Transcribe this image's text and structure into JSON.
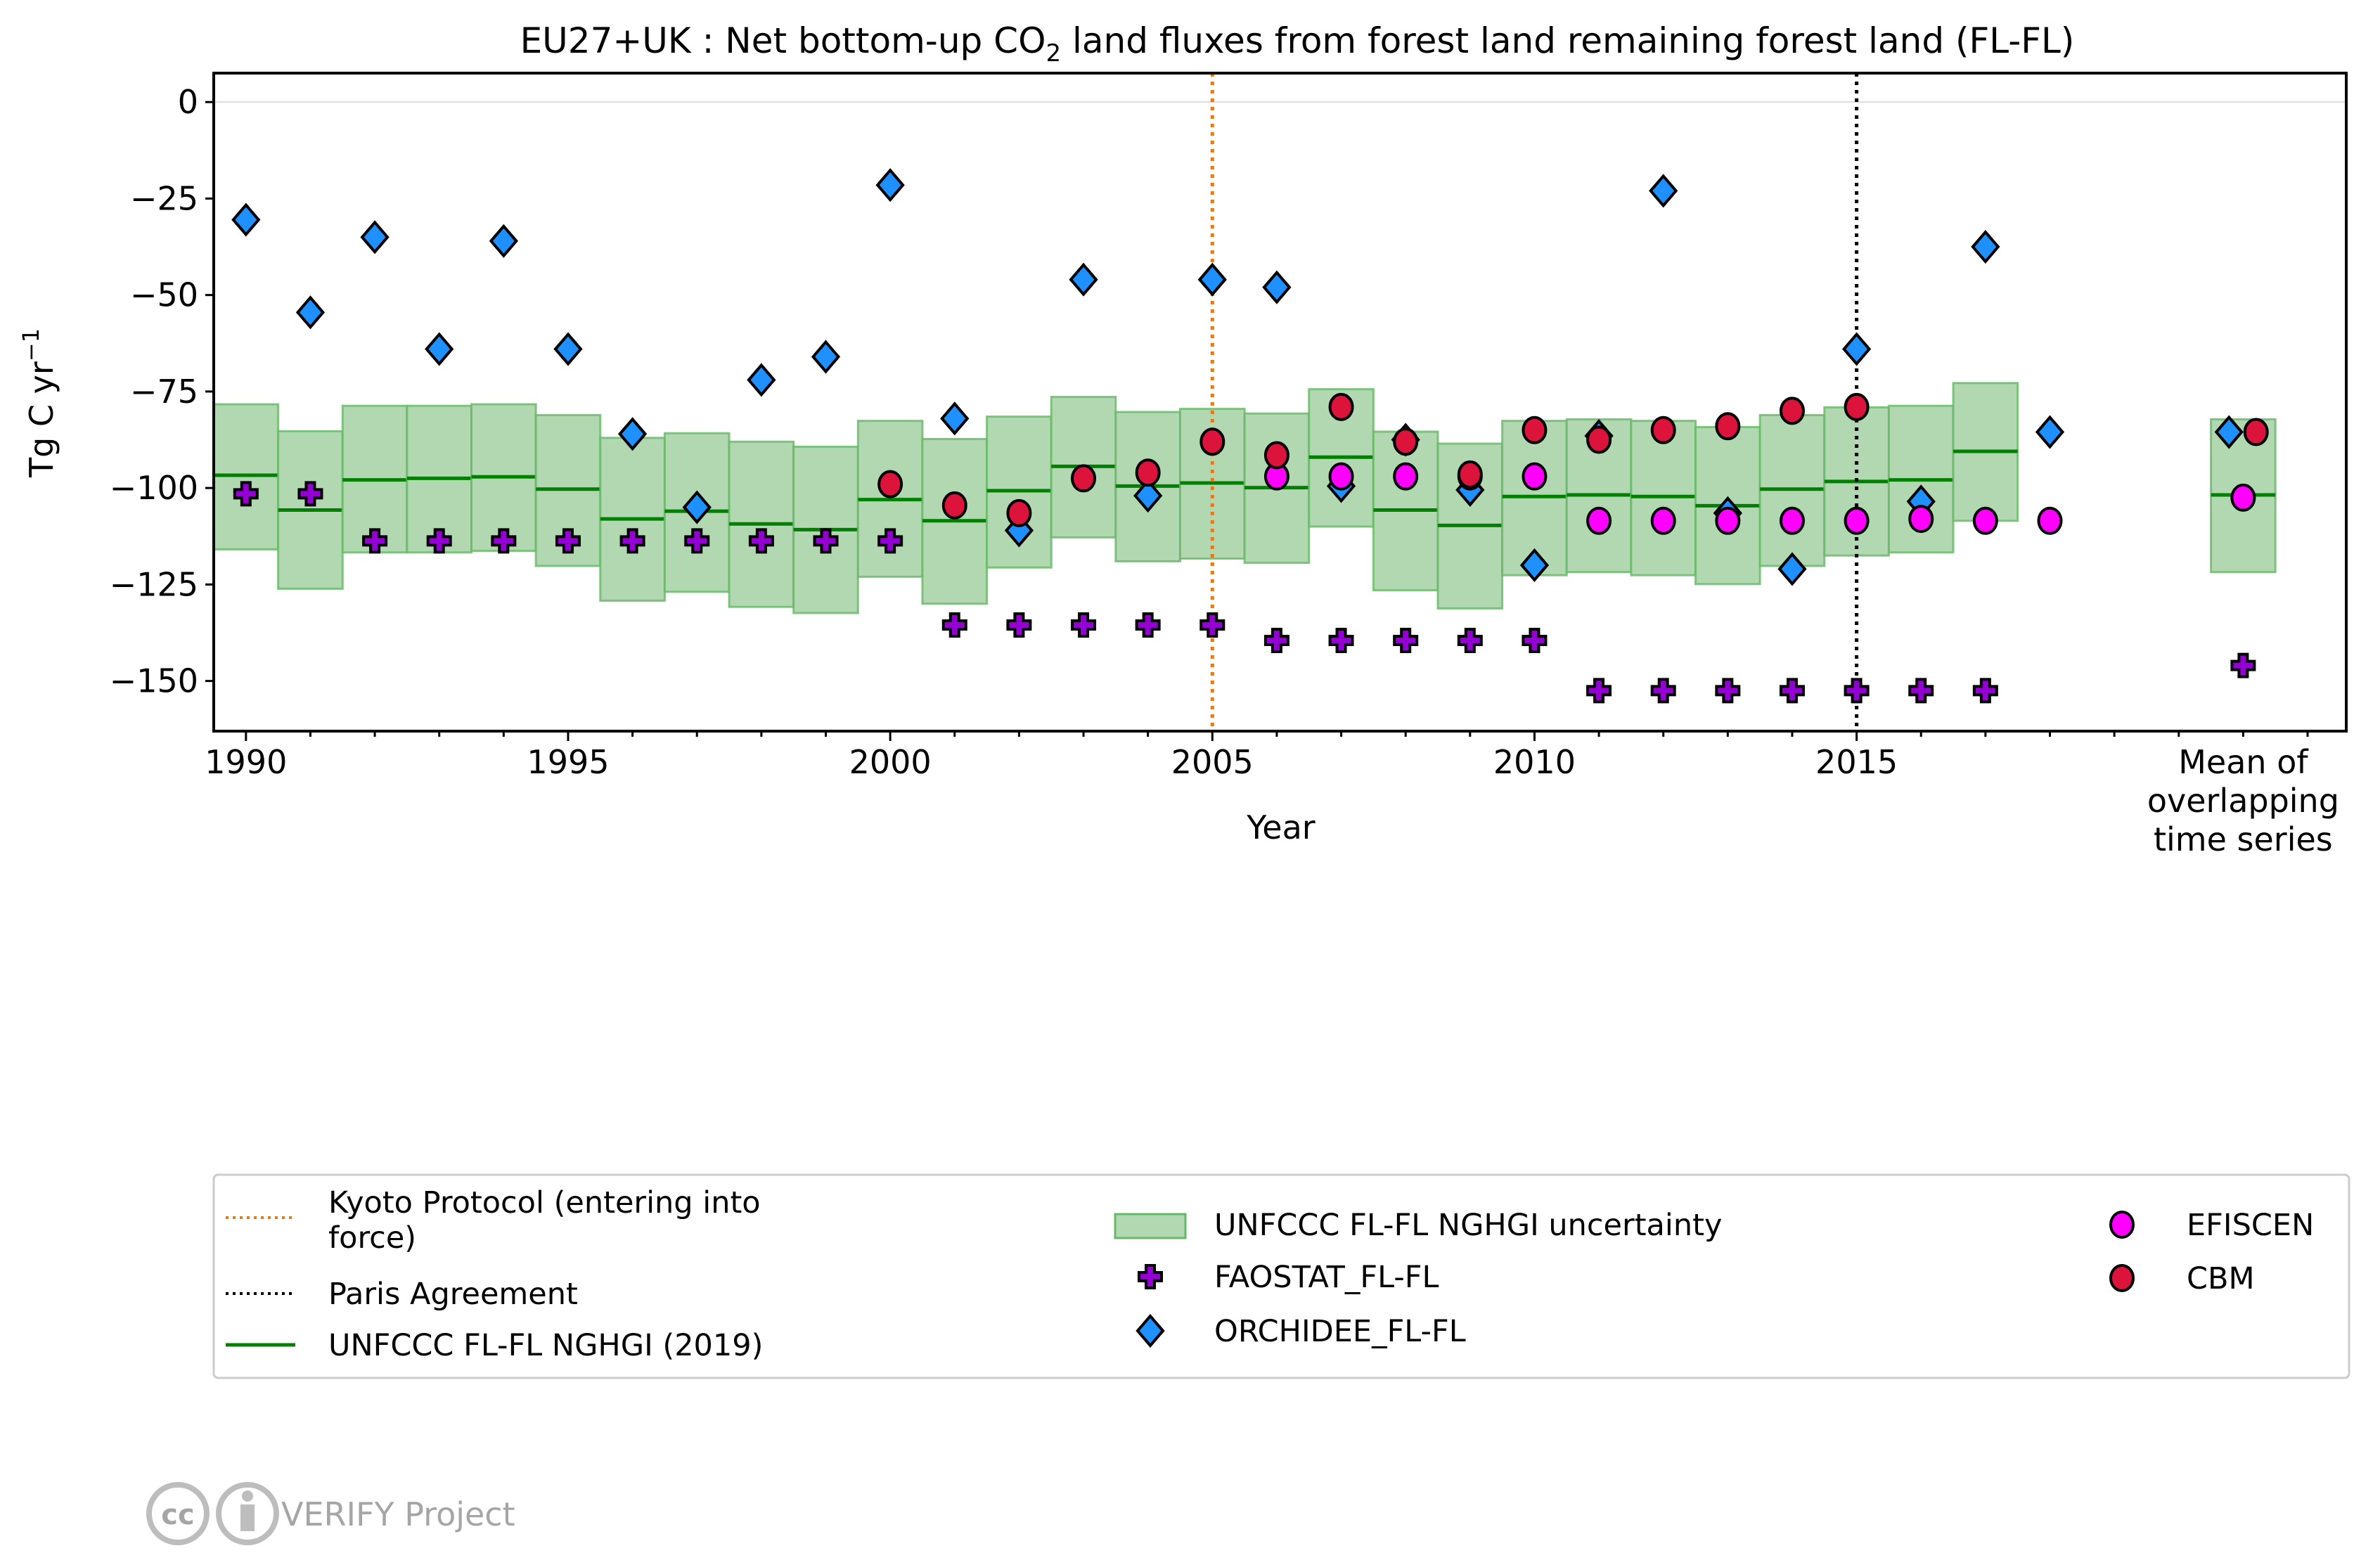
{
  "chart_data": {
    "type": "scatter",
    "title_main": "EU27+UK : Net bottom-up CO",
    "title_sub": "2",
    "title_rest": " land fluxes from forest land remaining forest land (FL-FL)",
    "xlabel": "Year",
    "ylabel_main": "Tg C yr",
    "ylabel_sup": "−1",
    "xlim": [
      1989.5,
      2022.6
    ],
    "ylim": [
      -163,
      7.5
    ],
    "x_ticks": [
      1990,
      1995,
      2000,
      2005,
      2010,
      2015
    ],
    "x_tick_labels": [
      "1990",
      "1995",
      "2000",
      "2005",
      "2010",
      "2015"
    ],
    "mean_label": [
      "Mean of",
      "overlapping",
      "time series"
    ],
    "mean_x": 2021,
    "y_ticks": [
      0,
      -25,
      -50,
      -75,
      -100,
      -125,
      -150
    ],
    "y_tick_labels": [
      "0",
      "−25",
      "−50",
      "−75",
      "−100",
      "−125",
      "−150"
    ],
    "zero_gridline": true,
    "vlines": [
      {
        "name": "Kyoto Protocol (entering into force)",
        "x": 2005,
        "color": "#e07b20"
      },
      {
        "name": "Paris Agreement",
        "x": 2015,
        "color": "#000000"
      }
    ],
    "nghgi": {
      "name": "UNFCCC FL-FL NGHGI (2019)",
      "uncertainty_name": "UNFCCC FL-FL NGHGI uncertainty",
      "color": "#008000",
      "fill": "#b2d8b2",
      "years": [
        1990,
        1991,
        1992,
        1993,
        1994,
        1995,
        1996,
        1997,
        1998,
        1999,
        2000,
        2001,
        2002,
        2003,
        2004,
        2005,
        2006,
        2007,
        2008,
        2009,
        2010,
        2011,
        2012,
        2013,
        2014,
        2015,
        2016,
        2017
      ],
      "values": [
        -96.7,
        -105.7,
        -97.9,
        -97.5,
        -97.1,
        -100.3,
        -108,
        -106,
        -109.3,
        -110.8,
        -103,
        -108.5,
        -100.7,
        -94.4,
        -99.5,
        -98.7,
        -99.9,
        -92,
        -105.7,
        -109.7,
        -102.2,
        -101.8,
        -102.2,
        -104.6,
        -100.3,
        -98.3,
        -97.9,
        -90.5
      ],
      "upper": [
        -78.3,
        -85.3,
        -78.7,
        -78.7,
        -78.3,
        -81.1,
        -87,
        -85.8,
        -88,
        -89.3,
        -82.6,
        -87.3,
        -81.5,
        -76.4,
        -80.3,
        -79.5,
        -80.7,
        -74.4,
        -85.4,
        -88.5,
        -82.6,
        -82.2,
        -82.6,
        -84.2,
        -81.1,
        -79.1,
        -78.7,
        -72.8
      ],
      "lower": [
        -115.9,
        -126.1,
        -116.7,
        -116.7,
        -116.3,
        -120.2,
        -129.2,
        -126.9,
        -130.8,
        -132.4,
        -123,
        -130,
        -120.6,
        -112.8,
        -119,
        -118.3,
        -119.4,
        -110,
        -126.5,
        -131.2,
        -122.6,
        -121.8,
        -122.6,
        -124.9,
        -120.2,
        -117.5,
        -116.7,
        -108.5
      ],
      "mean": {
        "value": -101.8,
        "upper": -82.2,
        "lower": -121.8
      }
    },
    "series": [
      {
        "name": "FAOSTAT_FL-FL",
        "marker": "plus",
        "color": "#9400d3",
        "x": [
          1990,
          1991,
          1992,
          1993,
          1994,
          1995,
          1996,
          1997,
          1998,
          1999,
          2000,
          2001,
          2002,
          2003,
          2004,
          2005,
          2006,
          2007,
          2008,
          2009,
          2010,
          2011,
          2012,
          2013,
          2014,
          2015,
          2016,
          2017
        ],
        "y": [
          -101.5,
          -101.5,
          -113.7,
          -113.7,
          -113.7,
          -113.7,
          -113.7,
          -113.7,
          -113.7,
          -113.7,
          -113.7,
          -135.5,
          -135.5,
          -135.5,
          -135.5,
          -135.5,
          -139.5,
          -139.5,
          -139.5,
          -139.5,
          -139.5,
          -152.5,
          -152.5,
          -152.5,
          -152.5,
          -152.5,
          -152.5,
          -152.5
        ],
        "mean": {
          "x": 2021,
          "y": -146
        }
      },
      {
        "name": "ORCHIDEE_FL-FL",
        "marker": "diamond",
        "color": "#1e90ff",
        "x": [
          1990,
          1991,
          1992,
          1993,
          1994,
          1995,
          1996,
          1997,
          1998,
          1999,
          2000,
          2001,
          2002,
          2003,
          2004,
          2005,
          2006,
          2007,
          2008,
          2009,
          2010,
          2011,
          2012,
          2013,
          2014,
          2015,
          2016,
          2017,
          2018
        ],
        "y": [
          -30.5,
          -54.5,
          -35,
          -64,
          -36,
          -64,
          -86,
          -105,
          -72,
          -66,
          -21.5,
          -82,
          -111,
          -46,
          -102,
          -46,
          -48,
          -99.5,
          -87.5,
          -100.5,
          -120,
          -86.5,
          -23,
          -106.5,
          -121,
          -64,
          -103.5,
          -37.5,
          -85.5
        ],
        "mean": {
          "x": 2020.78,
          "y": -85.5
        }
      },
      {
        "name": "EFISCEN",
        "marker": "circle",
        "color": "#ff00ff",
        "x": [
          2006,
          2007,
          2008,
          2009,
          2010,
          2011,
          2012,
          2013,
          2014,
          2015,
          2016,
          2017,
          2018
        ],
        "y": [
          -97,
          -97,
          -97,
          -97,
          -97,
          -108.5,
          -108.5,
          -108.5,
          -108.5,
          -108.5,
          -108,
          -108.5,
          -108.5
        ],
        "mean": {
          "x": 2021,
          "y": -102.5
        }
      },
      {
        "name": "CBM",
        "marker": "circle",
        "color": "#dc143c",
        "x": [
          2000,
          2001,
          2002,
          2003,
          2004,
          2005,
          2006,
          2007,
          2008,
          2009,
          2010,
          2011,
          2012,
          2013,
          2014,
          2015
        ],
        "y": [
          -99,
          -104.5,
          -106.5,
          -97.5,
          -96,
          -88,
          -91.5,
          -79,
          -88,
          -96.5,
          -85,
          -87.5,
          -85,
          -84,
          -80,
          -79
        ],
        "mean": {
          "x": 2021.2,
          "y": -85.5
        }
      }
    ],
    "legend": {
      "placement": "below",
      "kyoto_lines": [
        "Kyoto Protocol (entering into",
        "force)"
      ],
      "paris": "Paris Agreement",
      "nghgi": "UNFCCC FL-FL NGHGI (2019)",
      "uncertainty": "UNFCCC FL-FL NGHGI uncertainty",
      "faostat": "FAOSTAT_FL-FL",
      "orchidee": "ORCHIDEE_FL-FL",
      "efiscen": "EFISCEN",
      "cbm": "CBM"
    }
  },
  "footer": {
    "credit": "VERIFY Project",
    "license_logo": "cc by"
  }
}
